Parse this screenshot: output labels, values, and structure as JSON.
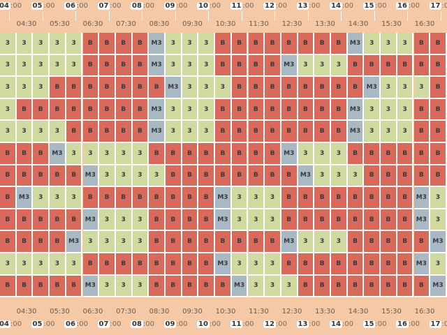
{
  "colors": {
    "B": "#d9695a",
    "3": "#cfd9a0",
    "M3": "#a9b9c3",
    "background": "#f5c9a5"
  },
  "time_axis": {
    "hours": [
      "04",
      "05",
      "06",
      "07",
      "08",
      "09",
      "10",
      "11",
      "12",
      "13",
      "14",
      "15",
      "16",
      "17"
    ],
    "minutes_suffix": ":00",
    "half_labels": [
      "04:30",
      "05:30",
      "06:30",
      "07:30",
      "08:30",
      "09:30",
      "10:30",
      "11:30",
      "12:30",
      "13:30",
      "14:30",
      "15:30",
      "16:30"
    ]
  },
  "rows": [
    [
      "3",
      "3",
      "3",
      "3",
      "3",
      "B",
      "B",
      "B",
      "B",
      "M3",
      "3",
      "3",
      "3",
      "B",
      "B",
      "B",
      "B",
      "B",
      "B",
      "B",
      "B",
      "M3",
      "3",
      "3",
      "3",
      "B",
      "B"
    ],
    [
      "3",
      "3",
      "3",
      "3",
      "3",
      "B",
      "B",
      "B",
      "B",
      "M3",
      "3",
      "3",
      "3",
      "B",
      "B",
      "B",
      "B",
      "M3",
      "3",
      "3",
      "3",
      "B",
      "B",
      "B",
      "B",
      "B",
      "B"
    ],
    [
      "3",
      "3",
      "3",
      "B",
      "B",
      "B",
      "B",
      "B",
      "B",
      "B",
      "M3",
      "3",
      "3",
      "3",
      "B",
      "B",
      "B",
      "B",
      "B",
      "B",
      "B",
      "B",
      "M3",
      "3",
      "3",
      "3",
      "B"
    ],
    [
      "3",
      "B",
      "B",
      "B",
      "B",
      "B",
      "B",
      "B",
      "B",
      "M3",
      "3",
      "3",
      "3",
      "B",
      "B",
      "B",
      "B",
      "B",
      "B",
      "B",
      "B",
      "M3",
      "3",
      "3",
      "3",
      "B",
      "B"
    ],
    [
      "3",
      "3",
      "3",
      "3",
      "B",
      "B",
      "B",
      "B",
      "B",
      "M3",
      "3",
      "3",
      "3",
      "B",
      "B",
      "B",
      "B",
      "B",
      "B",
      "B",
      "B",
      "M3",
      "3",
      "3",
      "3",
      "B",
      "B"
    ],
    [
      "B",
      "B",
      "B",
      "M3",
      "3",
      "3",
      "3",
      "3",
      "3",
      "B",
      "B",
      "B",
      "B",
      "B",
      "B",
      "B",
      "B",
      "M3",
      "3",
      "3",
      "3",
      "B",
      "B",
      "B",
      "B",
      "B",
      "B"
    ],
    [
      "B",
      "B",
      "B",
      "B",
      "B",
      "M3",
      "3",
      "3",
      "3",
      "3",
      "B",
      "B",
      "B",
      "B",
      "B",
      "B",
      "B",
      "B",
      "M3",
      "3",
      "3",
      "3",
      "B",
      "B",
      "B",
      "B",
      "B"
    ],
    [
      "B",
      "M3",
      "3",
      "3",
      "3",
      "B",
      "B",
      "B",
      "B",
      "B",
      "B",
      "B",
      "B",
      "M3",
      "3",
      "3",
      "3",
      "B",
      "B",
      "B",
      "B",
      "B",
      "B",
      "B",
      "B",
      "M3",
      "3"
    ],
    [
      "B",
      "B",
      "B",
      "B",
      "B",
      "M3",
      "3",
      "3",
      "3",
      "B",
      "B",
      "B",
      "B",
      "M3",
      "3",
      "3",
      "3",
      "B",
      "B",
      "B",
      "B",
      "B",
      "B",
      "B",
      "B",
      "M3",
      "3"
    ],
    [
      "B",
      "B",
      "B",
      "B",
      "M3",
      "3",
      "3",
      "3",
      "3",
      "B",
      "B",
      "B",
      "B",
      "B",
      "B",
      "B",
      "B",
      "M3",
      "3",
      "3",
      "3",
      "B",
      "B",
      "B",
      "B",
      "B",
      "M3"
    ],
    [
      "3",
      "3",
      "3",
      "3",
      "3",
      "B",
      "B",
      "B",
      "B",
      "B",
      "B",
      "B",
      "B",
      "M3",
      "3",
      "3",
      "3",
      "B",
      "B",
      "B",
      "B",
      "B",
      "B",
      "B",
      "B",
      "M3",
      "3"
    ],
    [
      "B",
      "B",
      "B",
      "B",
      "B",
      "M3",
      "3",
      "3",
      "3",
      "B",
      "B",
      "B",
      "B",
      "B",
      "M3",
      "3",
      "3",
      "3",
      "B",
      "B",
      "B",
      "B",
      "B",
      "B",
      "B",
      "B",
      "M3"
    ]
  ]
}
